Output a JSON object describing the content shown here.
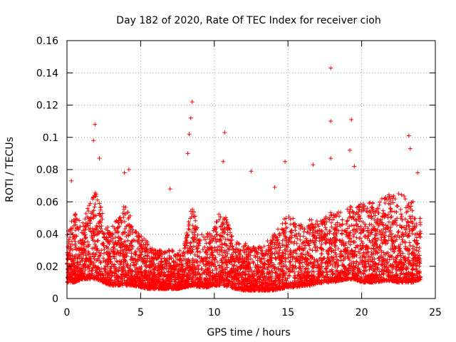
{
  "chart_data": {
    "type": "scatter",
    "title": "Day 182 of 2020, Rate Of TEC Index for receiver cioh",
    "xlabel": "GPS time / hours",
    "ylabel": "ROTI / TECUs",
    "xlim": [
      0,
      25
    ],
    "ylim": [
      0,
      0.16
    ],
    "x_ticks": [
      "0",
      "5",
      "10",
      "15",
      "20",
      "25"
    ],
    "y_ticks": [
      "0",
      "0.02",
      "0.04",
      "0.06",
      "0.08",
      "0.1",
      "0.12",
      "0.14",
      "0.16"
    ],
    "grid": true,
    "marker": "+",
    "color": "#ff0000",
    "series": [
      {
        "name": "ROTI",
        "envelope": {
          "hours": [
            0,
            0.5,
            1,
            1.5,
            2,
            2.5,
            3,
            3.5,
            4,
            4.5,
            5,
            5.5,
            6,
            6.5,
            7,
            7.5,
            8,
            8.5,
            9,
            9.5,
            10,
            10.5,
            11,
            11.5,
            12,
            12.5,
            13,
            13.5,
            14,
            14.5,
            15,
            15.5,
            16,
            16.5,
            17,
            17.5,
            18,
            18.5,
            19,
            19.5,
            20,
            20.5,
            21,
            21.5,
            22,
            22.5,
            23,
            23.5,
            24
          ],
          "low": [
            0.01,
            0.01,
            0.012,
            0.012,
            0.012,
            0.01,
            0.008,
            0.008,
            0.008,
            0.008,
            0.007,
            0.006,
            0.006,
            0.006,
            0.006,
            0.006,
            0.007,
            0.008,
            0.007,
            0.007,
            0.008,
            0.008,
            0.007,
            0.006,
            0.005,
            0.005,
            0.005,
            0.005,
            0.005,
            0.006,
            0.007,
            0.007,
            0.008,
            0.008,
            0.009,
            0.01,
            0.01,
            0.011,
            0.012,
            0.012,
            0.01,
            0.01,
            0.01,
            0.011,
            0.011,
            0.01,
            0.01,
            0.01,
            0.012
          ],
          "high": [
            0.04,
            0.055,
            0.045,
            0.06,
            0.07,
            0.05,
            0.045,
            0.05,
            0.06,
            0.045,
            0.04,
            0.035,
            0.03,
            0.03,
            0.03,
            0.03,
            0.035,
            0.06,
            0.04,
            0.04,
            0.045,
            0.06,
            0.045,
            0.035,
            0.035,
            0.032,
            0.032,
            0.035,
            0.04,
            0.045,
            0.055,
            0.05,
            0.045,
            0.05,
            0.05,
            0.05,
            0.055,
            0.055,
            0.06,
            0.055,
            0.06,
            0.06,
            0.06,
            0.065,
            0.065,
            0.065,
            0.065,
            0.06,
            0.05
          ]
        },
        "notable_points": [
          {
            "x": 0.3,
            "y": 0.073
          },
          {
            "x": 1.9,
            "y": 0.108
          },
          {
            "x": 1.8,
            "y": 0.098
          },
          {
            "x": 2.2,
            "y": 0.087
          },
          {
            "x": 3.9,
            "y": 0.078
          },
          {
            "x": 4.2,
            "y": 0.08
          },
          {
            "x": 7.0,
            "y": 0.068
          },
          {
            "x": 8.5,
            "y": 0.122
          },
          {
            "x": 8.4,
            "y": 0.112
          },
          {
            "x": 8.3,
            "y": 0.102
          },
          {
            "x": 8.2,
            "y": 0.09
          },
          {
            "x": 10.7,
            "y": 0.103
          },
          {
            "x": 10.6,
            "y": 0.085
          },
          {
            "x": 12.5,
            "y": 0.079
          },
          {
            "x": 14.1,
            "y": 0.069
          },
          {
            "x": 14.8,
            "y": 0.085
          },
          {
            "x": 16.7,
            "y": 0.083
          },
          {
            "x": 17.9,
            "y": 0.143
          },
          {
            "x": 17.9,
            "y": 0.11
          },
          {
            "x": 17.9,
            "y": 0.087
          },
          {
            "x": 19.3,
            "y": 0.111
          },
          {
            "x": 19.2,
            "y": 0.092
          },
          {
            "x": 19.5,
            "y": 0.082
          },
          {
            "x": 23.2,
            "y": 0.101
          },
          {
            "x": 23.3,
            "y": 0.093
          },
          {
            "x": 23.8,
            "y": 0.078
          }
        ]
      }
    ]
  }
}
